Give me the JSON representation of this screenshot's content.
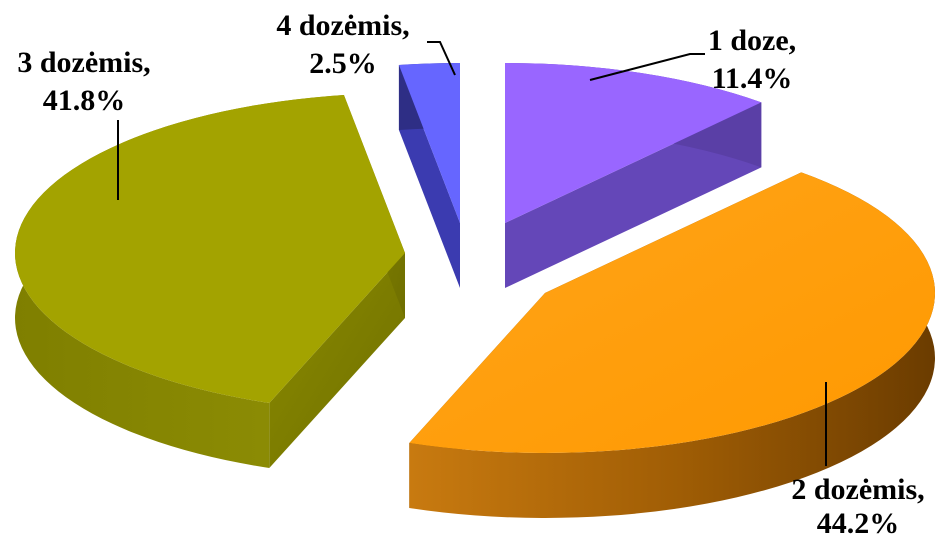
{
  "chart_data": {
    "type": "pie",
    "style": "3d-exploded",
    "slices": [
      {
        "label": "1 doze,",
        "value": 11.4,
        "value_label": "11.4%",
        "color": "#9966ff"
      },
      {
        "label": "2 dozėmis,",
        "value": 44.2,
        "value_label": "44.2%",
        "color": "#ff9900"
      },
      {
        "label": "3 dozėmis,",
        "value": 41.8,
        "value_label": "41.8%",
        "color": "#999900"
      },
      {
        "label": "4 dozėmis,",
        "value": 2.5,
        "value_label": "2.5%",
        "color": "#6666ff"
      }
    ],
    "legend": "none",
    "data_labels": "outside-with-leader-lines"
  }
}
